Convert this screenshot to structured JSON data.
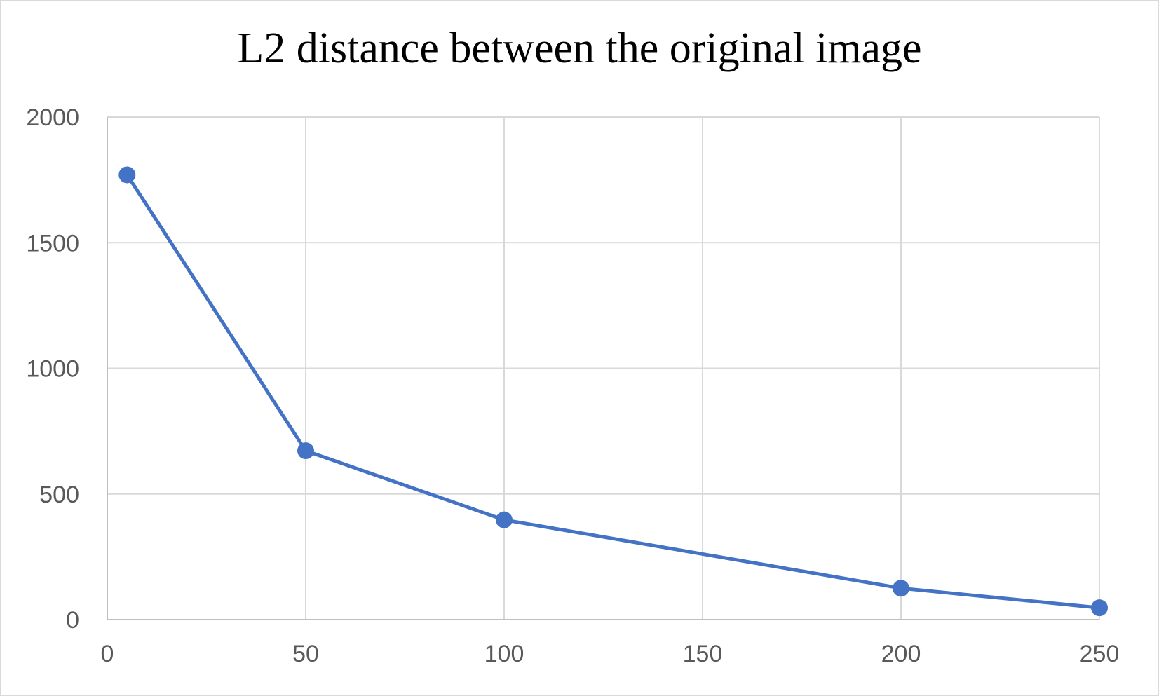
{
  "chart_data": {
    "type": "line",
    "title": "L2 distance between the original image",
    "xlabel": "",
    "ylabel": "",
    "x": [
      5,
      50,
      100,
      200,
      250
    ],
    "series": [
      {
        "values": [
          1770,
          672,
          397,
          125,
          47
        ]
      }
    ],
    "xlim": [
      0,
      250
    ],
    "ylim": [
      0,
      2000
    ],
    "x_ticks": [
      "0",
      "50",
      "100",
      "150",
      "200",
      "250"
    ],
    "y_ticks": [
      "0",
      "500",
      "1000",
      "1500",
      "2000"
    ],
    "grid": true,
    "legend": "none",
    "colors": {
      "series": "#4472c4",
      "grid": "#d9d9d9",
      "axis_text": "#595959",
      "title": "#000000"
    }
  }
}
